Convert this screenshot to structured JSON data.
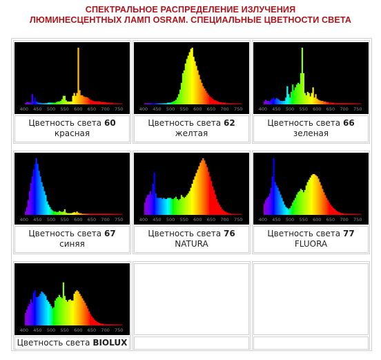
{
  "header": {
    "line1": "СПЕКТРАЛЬНОЕ РАСПРЕДЕЛЕНИЕ ИЗЛУЧЕНИЯ",
    "line2": "ЛЮМИНЕСЦЕНТНЫХ ЛАМП OSRAM. СПЕЦИАЛЬНЫЕ ЦВЕТНОСТИ СВЕТА"
  },
  "colors": {
    "title": "#b3131b",
    "chart_bg": "#000000",
    "tick_text": "#8c8c8c",
    "border": "#cfcfcf"
  },
  "caption_prefix": "Цветность света",
  "chart_data": [
    {
      "type": "bar",
      "code": "60",
      "name": "красная",
      "xlim": [
        380,
        780
      ],
      "ylim": [
        0,
        1
      ],
      "xticks": [
        "400",
        "450",
        "500",
        "550",
        "600",
        "650",
        "700",
        "750"
      ],
      "x": [
        405,
        410,
        415,
        420,
        425,
        430,
        435,
        440,
        445,
        450,
        455,
        460,
        465,
        470,
        475,
        480,
        485,
        490,
        495,
        500,
        505,
        510,
        515,
        520,
        525,
        530,
        535,
        540,
        545,
        550,
        555,
        560,
        565,
        570,
        575,
        580,
        585,
        590,
        595,
        600,
        605,
        610,
        615,
        620,
        625,
        630,
        635,
        640,
        645,
        650,
        655,
        660,
        665,
        670,
        675,
        680,
        685,
        690,
        695,
        700,
        705,
        710,
        715,
        720,
        725,
        730,
        735,
        740,
        745,
        750,
        755,
        760
      ],
      "values": [
        0.02,
        0.04,
        0.04,
        0.03,
        0.03,
        0.18,
        0.05,
        0.12,
        0.05,
        0.04,
        0.03,
        0.03,
        0.02,
        0.02,
        0.02,
        0.02,
        0.02,
        0.03,
        0.03,
        0.03,
        0.03,
        0.03,
        0.03,
        0.04,
        0.05,
        0.05,
        0.06,
        0.09,
        0.15,
        0.15,
        0.07,
        0.05,
        0.05,
        0.05,
        0.05,
        0.15,
        0.2,
        0.15,
        0.2,
        1.0,
        0.25,
        0.16,
        0.16,
        0.14,
        0.13,
        0.13,
        0.12,
        0.1,
        0.08,
        0.07,
        0.06,
        0.05,
        0.05,
        0.05,
        0.05,
        0.05,
        0.04,
        0.04,
        0.04,
        0.04,
        0.03,
        0.03,
        0.03,
        0.03,
        0.03,
        0.02,
        0.02,
        0.02,
        0.02,
        0.02,
        0.02,
        0.02
      ]
    },
    {
      "type": "bar",
      "code": "62",
      "name": "желтая",
      "xlim": [
        380,
        780
      ],
      "ylim": [
        0,
        1
      ],
      "xticks": [
        "400",
        "450",
        "500",
        "550",
        "600",
        "650",
        "700",
        "750"
      ],
      "x": [
        405,
        410,
        415,
        420,
        425,
        430,
        435,
        440,
        445,
        450,
        455,
        460,
        465,
        470,
        475,
        480,
        485,
        490,
        495,
        500,
        505,
        510,
        515,
        520,
        525,
        530,
        535,
        540,
        545,
        550,
        555,
        560,
        565,
        570,
        575,
        580,
        585,
        590,
        595,
        600,
        605,
        610,
        615,
        620,
        625,
        630,
        635,
        640,
        645,
        650,
        655,
        660,
        665,
        670,
        675,
        680,
        685,
        690,
        695,
        700,
        705,
        710,
        715,
        720,
        725,
        730,
        735,
        740,
        745,
        750,
        755,
        760
      ],
      "values": [
        0.02,
        0.02,
        0.02,
        0.02,
        0.02,
        0.02,
        0.02,
        0.02,
        0.02,
        0.02,
        0.02,
        0.02,
        0.02,
        0.02,
        0.02,
        0.02,
        0.02,
        0.03,
        0.03,
        0.03,
        0.04,
        0.05,
        0.06,
        0.08,
        0.12,
        0.18,
        0.26,
        0.38,
        0.55,
        0.6,
        0.72,
        0.8,
        0.86,
        0.92,
        0.98,
        1.0,
        0.84,
        0.76,
        0.68,
        0.6,
        0.52,
        0.44,
        0.38,
        0.32,
        0.28,
        0.24,
        0.2,
        0.17,
        0.14,
        0.12,
        0.1,
        0.08,
        0.07,
        0.06,
        0.05,
        0.04,
        0.04,
        0.03,
        0.03,
        0.03,
        0.02,
        0.02,
        0.02,
        0.02,
        0.02,
        0.02,
        0.02,
        0.02,
        0.02,
        0.02,
        0.02,
        0.02
      ]
    },
    {
      "type": "bar",
      "code": "66",
      "name": "зеленая",
      "xlim": [
        380,
        780
      ],
      "ylim": [
        0,
        1
      ],
      "xticks": [
        "400",
        "450",
        "500",
        "550",
        "600",
        "650",
        "700",
        "750"
      ],
      "x": [
        405,
        410,
        415,
        420,
        425,
        430,
        435,
        440,
        445,
        450,
        455,
        460,
        465,
        470,
        475,
        480,
        485,
        490,
        495,
        500,
        505,
        510,
        515,
        520,
        525,
        530,
        535,
        540,
        545,
        550,
        555,
        560,
        565,
        570,
        575,
        580,
        585,
        590,
        595,
        600,
        605,
        610,
        615,
        620,
        625,
        630,
        635,
        640,
        645,
        650,
        655,
        660,
        665,
        670,
        675,
        680,
        685,
        690,
        695,
        700,
        705,
        710,
        715,
        720,
        725,
        730,
        735,
        740,
        745,
        750,
        755,
        760
      ],
      "values": [
        0.05,
        0.08,
        0.06,
        0.06,
        0.05,
        0.08,
        0.1,
        0.12,
        0.09,
        0.11,
        0.1,
        0.08,
        0.06,
        0.06,
        0.06,
        0.06,
        0.12,
        0.32,
        0.18,
        0.12,
        0.22,
        0.35,
        0.25,
        0.3,
        0.35,
        0.38,
        0.36,
        0.55,
        1.0,
        0.55,
        0.2,
        0.16,
        0.22,
        0.2,
        0.14,
        0.2,
        0.3,
        0.12,
        0.18,
        0.1,
        0.08,
        0.07,
        0.06,
        0.06,
        0.05,
        0.05,
        0.04,
        0.04,
        0.03,
        0.03,
        0.03,
        0.03,
        0.02,
        0.02,
        0.02,
        0.02,
        0.02,
        0.02,
        0.02,
        0.02,
        0.02,
        0.02,
        0.02,
        0.02,
        0.02,
        0.02,
        0.02,
        0.02,
        0.02,
        0.02,
        0.02,
        0.02
      ]
    },
    {
      "type": "bar",
      "code": "67",
      "name": "синяя",
      "xlim": [
        380,
        780
      ],
      "ylim": [
        0,
        1
      ],
      "xticks": [
        "400",
        "450",
        "500",
        "550",
        "600",
        "650",
        "700",
        "750"
      ],
      "x": [
        405,
        410,
        415,
        420,
        425,
        430,
        435,
        440,
        445,
        450,
        455,
        460,
        465,
        470,
        475,
        480,
        485,
        490,
        495,
        500,
        505,
        510,
        515,
        520,
        525,
        530,
        535,
        540,
        545,
        550,
        555,
        560,
        565,
        570,
        575,
        580,
        585,
        590,
        595,
        600,
        605,
        610,
        615,
        620,
        625,
        630,
        635,
        640,
        645,
        650,
        655,
        660,
        665,
        670,
        675,
        680,
        685,
        690,
        695,
        700,
        705,
        710,
        715,
        720,
        725,
        730,
        735,
        740,
        745,
        750,
        755,
        760
      ],
      "values": [
        0.06,
        0.14,
        0.26,
        0.42,
        0.56,
        0.68,
        0.8,
        0.9,
        1.0,
        0.9,
        0.78,
        0.68,
        0.58,
        0.5,
        0.42,
        0.35,
        0.24,
        0.18,
        0.14,
        0.1,
        0.08,
        0.06,
        0.06,
        0.05,
        0.05,
        0.07,
        0.06,
        0.05,
        0.06,
        0.1,
        0.04,
        0.03,
        0.03,
        0.03,
        0.03,
        0.04,
        0.05,
        0.04,
        0.06,
        0.04,
        0.03,
        0.03,
        0.02,
        0.02,
        0.02,
        0.02,
        0.02,
        0.02,
        0.02,
        0.02,
        0.02,
        0.02,
        0.02,
        0.02,
        0.02,
        0.02,
        0.02,
        0.02,
        0.02,
        0.02,
        0.02,
        0.02,
        0.02,
        0.02,
        0.02,
        0.02,
        0.02,
        0.02,
        0.02,
        0.02,
        0.02,
        0.02
      ]
    },
    {
      "type": "bar",
      "code": "76",
      "name": "NATURA",
      "xlim": [
        380,
        780
      ],
      "ylim": [
        0,
        1
      ],
      "xticks": [
        "400",
        "450",
        "500",
        "550",
        "600",
        "650",
        "700",
        "750"
      ],
      "x": [
        405,
        410,
        415,
        420,
        425,
        430,
        435,
        440,
        445,
        450,
        455,
        460,
        465,
        470,
        475,
        480,
        485,
        490,
        495,
        500,
        505,
        510,
        515,
        520,
        525,
        530,
        535,
        540,
        545,
        550,
        555,
        560,
        565,
        570,
        575,
        580,
        585,
        590,
        595,
        600,
        605,
        610,
        615,
        620,
        625,
        630,
        635,
        640,
        645,
        650,
        655,
        660,
        665,
        670,
        675,
        680,
        685,
        690,
        695,
        700,
        705,
        710,
        715,
        720,
        725,
        730,
        735,
        740,
        745,
        750,
        755,
        760
      ],
      "values": [
        0.22,
        0.3,
        0.35,
        0.36,
        0.42,
        0.36,
        0.55,
        0.75,
        0.38,
        0.3,
        0.3,
        0.3,
        0.3,
        0.28,
        0.3,
        0.28,
        0.28,
        0.3,
        0.3,
        0.3,
        0.28,
        0.28,
        0.3,
        0.32,
        0.28,
        0.26,
        0.28,
        0.35,
        0.32,
        0.3,
        0.32,
        0.35,
        0.38,
        0.42,
        0.48,
        0.55,
        0.62,
        0.68,
        0.74,
        0.8,
        0.86,
        0.92,
        0.96,
        1.0,
        0.96,
        0.9,
        0.84,
        0.76,
        0.68,
        0.6,
        0.5,
        0.44,
        0.36,
        0.28,
        0.22,
        0.18,
        0.14,
        0.1,
        0.08,
        0.06,
        0.05,
        0.04,
        0.03,
        0.03,
        0.02,
        0.02,
        0.02,
        0.02,
        0.02,
        0.02,
        0.02,
        0.02
      ]
    },
    {
      "type": "bar",
      "code": "77",
      "name": "FLUORA",
      "xlim": [
        380,
        780
      ],
      "ylim": [
        0,
        1
      ],
      "xticks": [
        "400",
        "450",
        "500",
        "550",
        "600",
        "650",
        "700",
        "750"
      ],
      "x": [
        405,
        410,
        415,
        420,
        425,
        430,
        435,
        440,
        445,
        450,
        455,
        460,
        465,
        470,
        475,
        480,
        485,
        490,
        495,
        500,
        505,
        510,
        515,
        520,
        525,
        530,
        535,
        540,
        545,
        550,
        555,
        560,
        565,
        570,
        575,
        580,
        585,
        590,
        595,
        600,
        605,
        610,
        615,
        620,
        625,
        630,
        635,
        640,
        645,
        650,
        655,
        660,
        665,
        670,
        675,
        680,
        685,
        690,
        695,
        700,
        705,
        710,
        715,
        720,
        725,
        730,
        735,
        740,
        745,
        750,
        755,
        760
      ],
      "values": [
        0.2,
        0.26,
        0.3,
        0.32,
        0.38,
        0.48,
        0.68,
        1.0,
        0.58,
        0.52,
        0.48,
        0.42,
        0.36,
        0.3,
        0.24,
        0.18,
        0.14,
        0.12,
        0.1,
        0.12,
        0.16,
        0.22,
        0.26,
        0.3,
        0.36,
        0.4,
        0.42,
        0.46,
        0.44,
        0.4,
        0.44,
        0.52,
        0.58,
        0.62,
        0.66,
        0.7,
        0.72,
        0.72,
        0.7,
        0.68,
        0.64,
        0.58,
        0.52,
        0.46,
        0.4,
        0.35,
        0.3,
        0.26,
        0.22,
        0.18,
        0.15,
        0.12,
        0.1,
        0.08,
        0.06,
        0.05,
        0.04,
        0.03,
        0.03,
        0.02,
        0.02,
        0.02,
        0.02,
        0.02,
        0.02,
        0.02,
        0.02,
        0.02,
        0.02,
        0.02,
        0.02,
        0.02
      ]
    },
    {
      "type": "bar",
      "code": "BIOLUX",
      "name": "",
      "xlim": [
        380,
        780
      ],
      "ylim": [
        0,
        1
      ],
      "xticks": [
        "400",
        "450",
        "500",
        "550",
        "600",
        "650",
        "700",
        "750"
      ],
      "x": [
        405,
        410,
        415,
        420,
        425,
        430,
        435,
        440,
        445,
        450,
        455,
        460,
        465,
        470,
        475,
        480,
        485,
        490,
        495,
        500,
        505,
        510,
        515,
        520,
        525,
        530,
        535,
        540,
        545,
        550,
        555,
        560,
        565,
        570,
        575,
        580,
        585,
        590,
        595,
        600,
        605,
        610,
        615,
        620,
        625,
        630,
        635,
        640,
        645,
        650,
        655,
        660,
        665,
        670,
        675,
        680,
        685,
        690,
        695,
        700,
        705,
        710,
        715,
        720,
        725,
        730,
        735,
        740,
        745,
        750,
        755,
        760
      ],
      "values": [
        0.22,
        0.28,
        0.34,
        0.38,
        0.46,
        0.4,
        0.58,
        0.62,
        0.5,
        0.5,
        0.52,
        0.56,
        0.6,
        0.58,
        0.55,
        0.52,
        0.45,
        0.42,
        0.38,
        0.34,
        0.3,
        0.32,
        0.44,
        0.48,
        0.5,
        0.54,
        0.5,
        0.48,
        0.76,
        0.52,
        0.45,
        0.42,
        0.45,
        0.46,
        0.44,
        0.44,
        0.56,
        0.6,
        0.62,
        0.6,
        0.56,
        0.52,
        0.48,
        0.44,
        0.4,
        0.35,
        0.3,
        0.25,
        0.2,
        0.16,
        0.13,
        0.1,
        0.08,
        0.06,
        0.05,
        0.04,
        0.03,
        0.03,
        0.02,
        0.02,
        0.02,
        0.02,
        0.02,
        0.02,
        0.02,
        0.02,
        0.02,
        0.02,
        0.02,
        0.02,
        0.02,
        0.02
      ]
    }
  ]
}
